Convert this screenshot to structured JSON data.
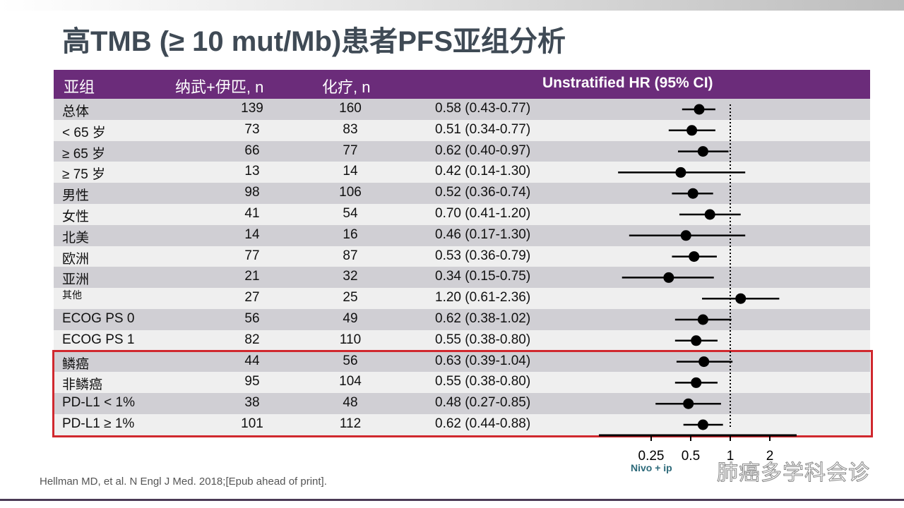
{
  "title": "高TMB (≥ 10 mut/Mb)患者PFS亚组分析",
  "header": {
    "subgroup": "亚组",
    "nivo": "纳武+伊匹, n",
    "chemo": "化疗, n",
    "hr": "Unstratified HR (95% CI)"
  },
  "chart_data": {
    "type": "forest",
    "x_scale": "log",
    "xlim": [
      0.1,
      3.2
    ],
    "reference_line": 1,
    "x_ticks": [
      "0.25",
      "0.5",
      "1",
      "2"
    ],
    "x_tick_values": [
      0.25,
      0.5,
      1,
      2
    ],
    "favors_left": "Nivo + ip",
    "rows": [
      {
        "label": "总体",
        "nivo": "139",
        "chemo": "160",
        "text": "0.58 (0.43-0.77)",
        "hr": 0.58,
        "lo": 0.43,
        "hi": 0.77
      },
      {
        "label": "< 65 岁",
        "nivo": "73",
        "chemo": "83",
        "text": "0.51 (0.34-0.77)",
        "hr": 0.51,
        "lo": 0.34,
        "hi": 0.77
      },
      {
        "label": "≥ 65 岁",
        "nivo": "66",
        "chemo": "77",
        "text": "0.62 (0.40-0.97)",
        "hr": 0.62,
        "lo": 0.4,
        "hi": 0.97
      },
      {
        "label": "≥ 75 岁",
        "nivo": "13",
        "chemo": "14",
        "text": "0.42 (0.14-1.30)",
        "hr": 0.42,
        "lo": 0.14,
        "hi": 1.3
      },
      {
        "label": "男性",
        "nivo": "98",
        "chemo": "106",
        "text": "0.52 (0.36-0.74)",
        "hr": 0.52,
        "lo": 0.36,
        "hi": 0.74
      },
      {
        "label": "女性",
        "nivo": "41",
        "chemo": "54",
        "text": "0.70 (0.41-1.20)",
        "hr": 0.7,
        "lo": 0.41,
        "hi": 1.2
      },
      {
        "label": "北美",
        "nivo": "14",
        "chemo": "16",
        "text": "0.46 (0.17-1.30)",
        "hr": 0.46,
        "lo": 0.17,
        "hi": 1.3
      },
      {
        "label": "欧洲",
        "nivo": "77",
        "chemo": "87",
        "text": "0.53 (0.36-0.79)",
        "hr": 0.53,
        "lo": 0.36,
        "hi": 0.79
      },
      {
        "label": "亚洲",
        "nivo": "21",
        "chemo": "32",
        "text": "0.34 (0.15-0.75)",
        "hr": 0.34,
        "lo": 0.15,
        "hi": 0.75
      },
      {
        "label": "其他",
        "nivo": "27",
        "chemo": "25",
        "text": "1.20 (0.61-2.36)",
        "hr": 1.2,
        "lo": 0.61,
        "hi": 2.36
      },
      {
        "label": "ECOG PS 0",
        "nivo": "56",
        "chemo": "49",
        "text": "0.62 (0.38-1.02)",
        "hr": 0.62,
        "lo": 0.38,
        "hi": 1.02
      },
      {
        "label": "ECOG PS 1",
        "nivo": "82",
        "chemo": "110",
        "text": "0.55 (0.38-0.80)",
        "hr": 0.55,
        "lo": 0.38,
        "hi": 0.8
      },
      {
        "label": "鳞癌",
        "nivo": "44",
        "chemo": "56",
        "text": "0.63 (0.39-1.04)",
        "hr": 0.63,
        "lo": 0.39,
        "hi": 1.04
      },
      {
        "label": "非鳞癌",
        "nivo": "95",
        "chemo": "104",
        "text": "0.55 (0.38-0.80)",
        "hr": 0.55,
        "lo": 0.38,
        "hi": 0.8
      },
      {
        "label": "PD-L1 < 1%",
        "nivo": "38",
        "chemo": "48",
        "text": "0.48 (0.27-0.85)",
        "hr": 0.48,
        "lo": 0.27,
        "hi": 0.85
      },
      {
        "label": "PD-L1 ≥ 1%",
        "nivo": "101",
        "chemo": "112",
        "text": "0.62 (0.44-0.88)",
        "hr": 0.62,
        "lo": 0.44,
        "hi": 0.88
      }
    ]
  },
  "highlight_color": "#d0282e",
  "header_color": "#6b2c7a",
  "citation": "Hellman MD, et al. N Engl J Med. 2018;[Epub ahead of print].",
  "watermark": "肺癌多学科会诊"
}
